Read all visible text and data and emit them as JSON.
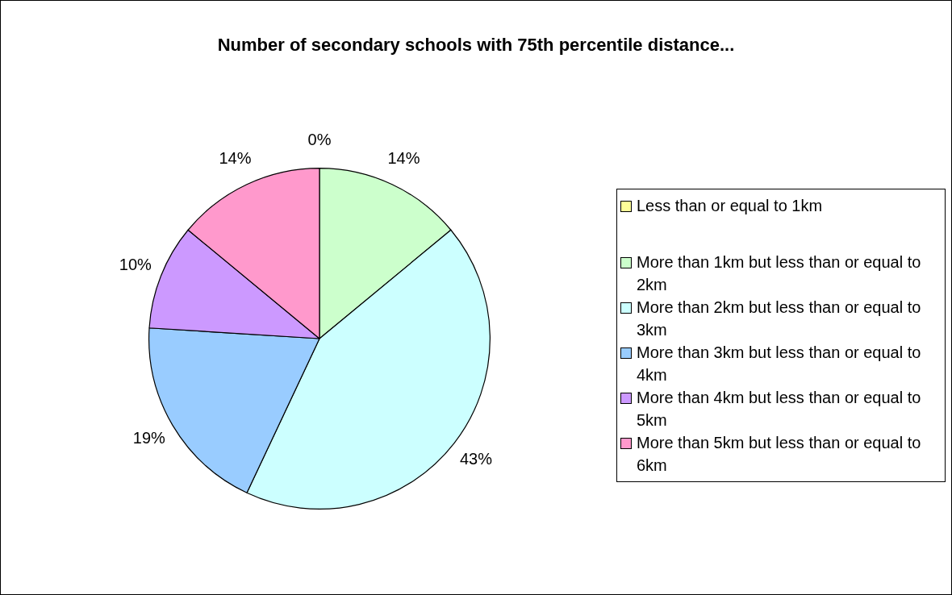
{
  "chart_data": {
    "type": "pie",
    "title": "Number of secondary schools with 75th percentile distance...",
    "categories": [
      "Less than or equal to 1km",
      "More than 1km but less than or equal to 2km",
      "More than 2km but less than or equal to 3km",
      "More than 3km but less than or equal to 4km",
      "More than 4km but less than or equal to 5km",
      "More than 5km but less than or equal to 6km"
    ],
    "values": [
      0,
      14,
      43,
      19,
      10,
      14
    ],
    "value_labels": [
      "0%",
      "14%",
      "43%",
      "19%",
      "10%",
      "14%"
    ],
    "colors": [
      "#ffff99",
      "#ccffcc",
      "#ccffff",
      "#99ccff",
      "#cc99ff",
      "#ff99cc"
    ],
    "legend": "right"
  }
}
